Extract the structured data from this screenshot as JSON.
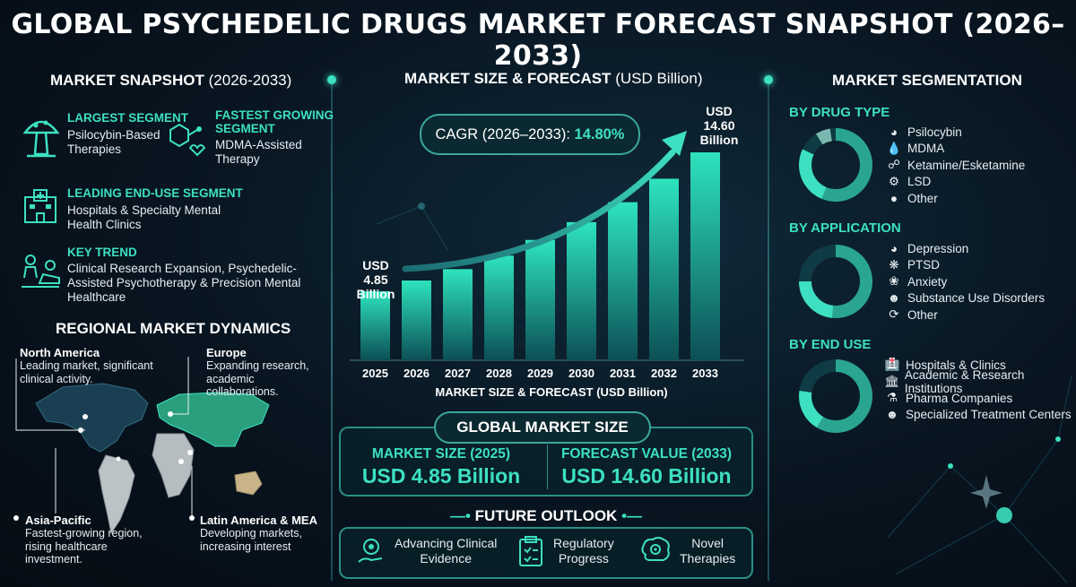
{
  "title": "GLOBAL PSYCHEDELIC DRUGS MARKET FORECAST SNAPSHOT (2026–2033)",
  "colors": {
    "accent": "#3de0c1",
    "bar_top": "#2ee3bd",
    "bar_bottom": "#0c4f55",
    "background": "#08141f"
  },
  "snapshot": {
    "title": "MARKET SNAPSHOT",
    "title_period": "(2026-2033)",
    "largest": {
      "icon": "mushroom-icon",
      "label": "LARGEST SEGMENT",
      "value": "Psilocybin-Based Therapies"
    },
    "fastest": {
      "icon": "molecule-heart-icon",
      "label_line1": "FASTEST GROWING",
      "label_line2": "SEGMENT",
      "value": "MDMA-Assisted Therapy"
    },
    "enduse": {
      "icon": "hospital-icon",
      "label": "LEADING END-USE SEGMENT",
      "value": "Hospitals & Specialty Mental Health Clinics"
    },
    "trend": {
      "icon": "therapy-session-icon",
      "label": "KEY TREND",
      "value": "Clinical Research Expansion, Psychedelic-Assisted Psychotherapy & Precision Mental Healthcare"
    }
  },
  "regional": {
    "title": "REGIONAL MARKET DYNAMICS",
    "north_america": {
      "name": "North America",
      "desc": "Leading market, significant clinical activity."
    },
    "europe": {
      "name": "Europe",
      "desc": "Expanding research, academic collaborations."
    },
    "asia_pacific": {
      "name": "Asia-Pacific",
      "desc": "Fastest-growing region, rising healthcare investment."
    },
    "latam_mea": {
      "name": "Latin America & MEA",
      "desc": "Developing markets, increasing interest"
    }
  },
  "forecast": {
    "title": "MARKET SIZE & FORECAST",
    "title_unit": "(USD Billion)",
    "cagr_label": "CAGR (2026–2033):",
    "cagr_value": "14.80%",
    "start_label": "USD 4.85 Billion",
    "end_label": "USD 14.60 Billion"
  },
  "chart_data": {
    "type": "bar",
    "categories": [
      "2025",
      "2026",
      "2027",
      "2028",
      "2029",
      "2030",
      "2031",
      "2032",
      "2033"
    ],
    "values": [
      4.85,
      5.6,
      6.4,
      7.35,
      8.45,
      9.7,
      11.1,
      12.75,
      14.6
    ],
    "xlabel": "MARKET SIZE & FORECAST (USD Billion)",
    "ylabel": "",
    "ylim": [
      0,
      14.6
    ],
    "grid": false
  },
  "global_market": {
    "title": "GLOBAL MARKET SIZE",
    "size_label": "MARKET SIZE (2025)",
    "size_value": "USD 4.85 Billion",
    "forecast_label": "FORECAST VALUE (2033)",
    "forecast_value": "USD 14.60 Billion"
  },
  "outlook": {
    "title": "FUTURE OUTLOOK",
    "items": [
      {
        "icon": "gear-hand-icon",
        "line1": "Advancing Clinical",
        "line2": "Evidence"
      },
      {
        "icon": "clipboard-icon",
        "line1": "Regulatory",
        "line2": "Progress"
      },
      {
        "icon": "brain-gear-icon",
        "line1": "Novel",
        "line2": "Therapies"
      }
    ]
  },
  "segmentation": {
    "title": "MARKET SEGMENTATION",
    "drug_type": {
      "title": "BY DRUG TYPE",
      "items": [
        {
          "icon": "pie-icon",
          "label": "Psilocybin"
        },
        {
          "icon": "drop-icon",
          "label": "MDMA"
        },
        {
          "icon": "molecule-icon",
          "label": "Ketamine/Esketamine"
        },
        {
          "icon": "gear-icon",
          "label": "LSD"
        },
        {
          "icon": "circle-icon",
          "label": "Other"
        }
      ]
    },
    "application": {
      "title": "BY APPLICATION",
      "items": [
        {
          "icon": "pie-icon",
          "label": "Depression"
        },
        {
          "icon": "neuron-icon",
          "label": "PTSD"
        },
        {
          "icon": "brain-icon",
          "label": "Anxiety"
        },
        {
          "icon": "people-icon",
          "label": "Substance Use Disorders"
        },
        {
          "icon": "refresh-icon",
          "label": "Other"
        }
      ]
    },
    "end_use": {
      "title": "BY END USE",
      "items": [
        {
          "icon": "hospital-icon",
          "label": "Hospitals & Clinics"
        },
        {
          "icon": "building-icon",
          "label": "Academic & Research Institutions"
        },
        {
          "icon": "flask-icon",
          "label": "Pharma Companies"
        },
        {
          "icon": "people-icon",
          "label": "Specialized Treatment Centers"
        }
      ]
    }
  }
}
